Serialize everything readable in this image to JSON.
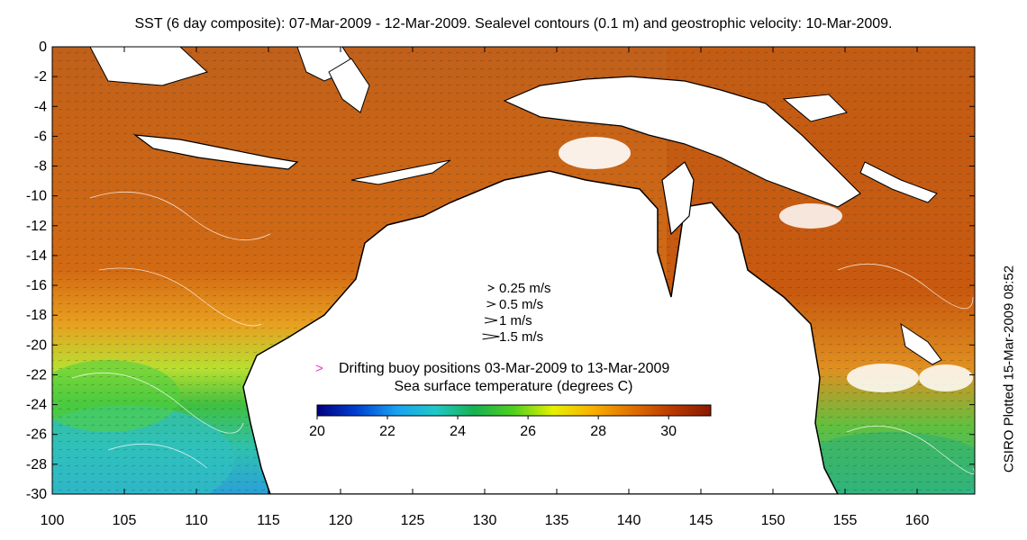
{
  "title": "SST (6 day composite): 07-Mar-2009 - 12-Mar-2009. Sealevel contours (0.1 m) and geostrophic velocity: 10-Mar-2009.",
  "side_note": "CSIRO Plotted 15-Mar-2009 08:52",
  "axes": {
    "x_ticks": [
      "100",
      "105",
      "110",
      "115",
      "120",
      "125",
      "130",
      "135",
      "140",
      "145",
      "150",
      "155",
      "160"
    ],
    "y_ticks": [
      "0",
      "-2",
      "-4",
      "-6",
      "-8",
      "-10",
      "-12",
      "-14",
      "-16",
      "-18",
      "-20",
      "-22",
      "-24",
      "-26",
      "-28",
      "-30"
    ],
    "xlim": [
      100,
      164
    ],
    "ylim": [
      -30,
      0
    ]
  },
  "velocity_legend": {
    "items": [
      {
        "label": "0.25 m/s",
        "speed": 0.25
      },
      {
        "label": "0.5 m/s",
        "speed": 0.5
      },
      {
        "label": "1 m/s",
        "speed": 1
      },
      {
        "label": "1.5 m/s",
        "speed": 1.5
      }
    ]
  },
  "buoy_legend": {
    "symbol": ">",
    "label": "Drifting buoy positions 03-Mar-2009 to 13-Mar-2009",
    "color": "#e23ad3"
  },
  "colorbar": {
    "title": "Sea surface temperature (degrees C)",
    "ticks": [
      "20",
      "22",
      "24",
      "26",
      "28",
      "30"
    ],
    "range": [
      20,
      31.2
    ],
    "colors": [
      "#000080",
      "#0040d0",
      "#1aa0f0",
      "#20c8c8",
      "#18b050",
      "#50d020",
      "#e8f000",
      "#f8b000",
      "#e07000",
      "#b83a00",
      "#8a1a00"
    ]
  },
  "palette": {
    "ocean_hot": "#c85a10",
    "ocean_warm": "#e07a18",
    "ocean_mid": "#f0c020",
    "ocean_green": "#40c040",
    "ocean_cool": "#30c8b0",
    "land": "#ffffff"
  }
}
